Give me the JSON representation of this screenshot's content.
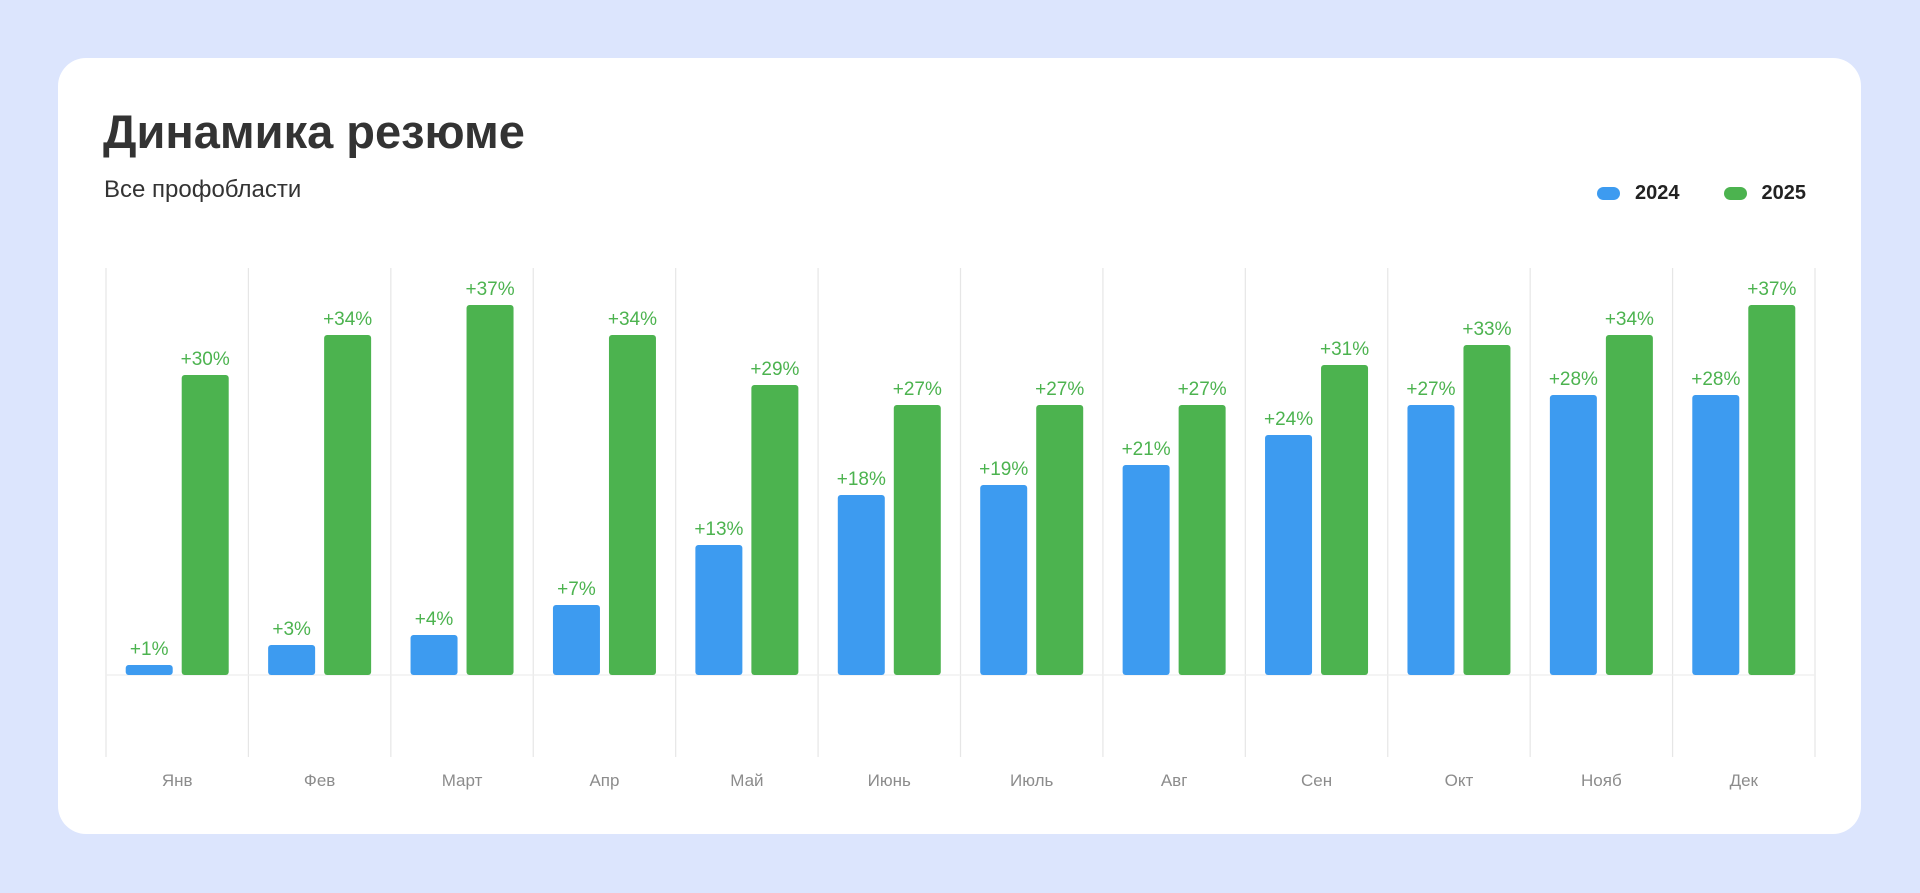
{
  "title": "Динамика резюме",
  "subtitle": "Все профобласти",
  "colors": {
    "series_2024": "#3d9bf0",
    "series_2025": "#4cb34f",
    "value_label": "#4cb34f",
    "grid": "#e6e6e6",
    "tick_label": "#8c8c8c",
    "background": "#dce5fd",
    "card": "#ffffff"
  },
  "chart_data": {
    "type": "bar",
    "title": "Динамика резюме",
    "subtitle": "Все профобласти",
    "categories": [
      "Янв",
      "Фев",
      "Март",
      "Апр",
      "Май",
      "Июнь",
      "Июль",
      "Авг",
      "Сен",
      "Окт",
      "Нояб",
      "Дек"
    ],
    "series": [
      {
        "name": "2024",
        "values": [
          1,
          3,
          4,
          7,
          13,
          18,
          19,
          21,
          24,
          27,
          28,
          28
        ]
      },
      {
        "name": "2025",
        "values": [
          30,
          34,
          37,
          34,
          29,
          27,
          27,
          27,
          31,
          33,
          34,
          37
        ]
      }
    ],
    "value_format": "+{v}%",
    "ylim": [
      -10,
      50
    ],
    "grid": true,
    "legend": "top-right",
    "xlabel": "",
    "ylabel": ""
  }
}
